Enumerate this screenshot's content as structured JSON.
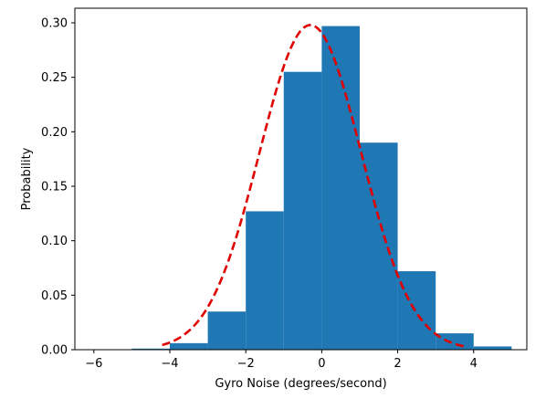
{
  "chart_data": {
    "type": "bar",
    "subtype": "histogram",
    "title": "",
    "xlabel": "Gyro Noise (degrees/second)",
    "ylabel": "Probability",
    "xlim": [
      -6.5,
      5.4
    ],
    "ylim": [
      0,
      0.3134
    ],
    "xticks": [
      -6,
      -4,
      -2,
      0,
      2,
      4
    ],
    "xtick_labels": [
      "−6",
      "−4",
      "−2",
      "0",
      "2",
      "4"
    ],
    "yticks": [
      0,
      0.05,
      0.1,
      0.15,
      0.2,
      0.25,
      0.3
    ],
    "ytick_labels": [
      "0.00",
      "0.05",
      "0.10",
      "0.15",
      "0.20",
      "0.25",
      "0.30"
    ],
    "bins": [
      {
        "x0": -5,
        "x1": -4,
        "value": 0.001
      },
      {
        "x0": -4,
        "x1": -3,
        "value": 0.006
      },
      {
        "x0": -3,
        "x1": -2,
        "value": 0.035
      },
      {
        "x0": -2,
        "x1": -1,
        "value": 0.127
      },
      {
        "x0": -1,
        "x1": 0,
        "value": 0.255
      },
      {
        "x0": 0,
        "x1": 1,
        "value": 0.297
      },
      {
        "x0": 1,
        "x1": 2,
        "value": 0.19
      },
      {
        "x0": 2,
        "x1": 3,
        "value": 0.072
      },
      {
        "x0": 3,
        "x1": 4,
        "value": 0.015
      },
      {
        "x0": 4,
        "x1": 5,
        "value": 0.003
      }
    ],
    "fit_curve": {
      "style": "dashed",
      "x_range": [
        -4.2,
        3.8
      ],
      "mean": -0.3,
      "std": 1.34,
      "peak": 0.298
    },
    "grid": false,
    "legend": "none",
    "colors": {
      "bars": "#1f77b4",
      "curve": "#e00000"
    }
  }
}
